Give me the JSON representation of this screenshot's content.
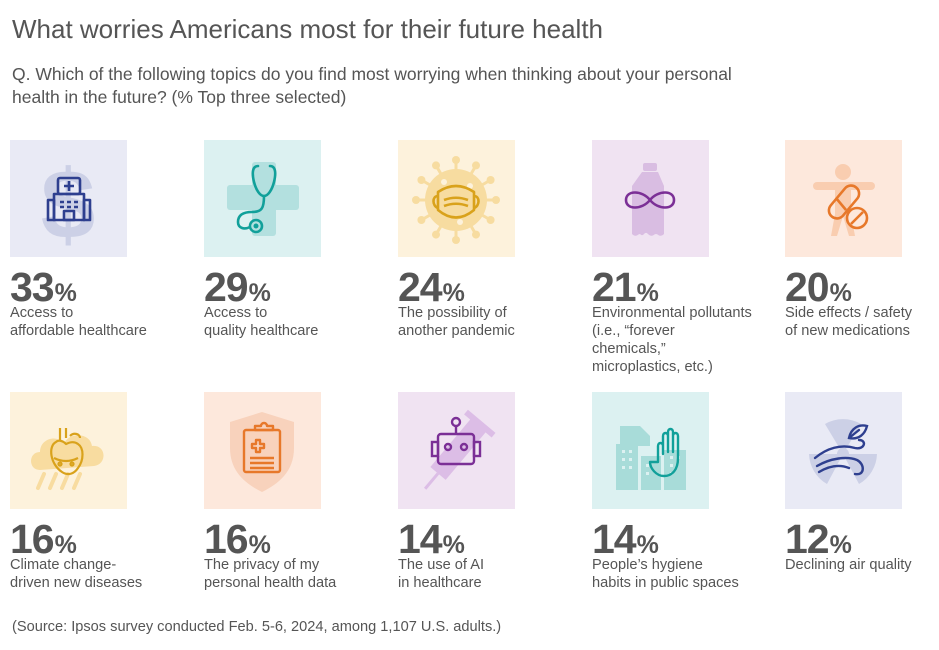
{
  "header": {
    "title": "What worries Americans most for their future health",
    "question": "Q. Which of the following topics do you find most worrying when thinking about your personal health in the future? (% Top three selected)"
  },
  "chart_data": {
    "type": "table",
    "title": "What worries Americans most for their future health",
    "subtitle": "Q. Which of the following topics do you find most worrying when thinking about your personal health in the future? (% Top three selected)",
    "unit": "%",
    "items": [
      {
        "value": 33,
        "label": "Access to\naffordable healthcare",
        "icon": "hospital-dollar-icon",
        "color": "#2e3f8f",
        "tile_color": "#e9eaf5"
      },
      {
        "value": 29,
        "label": "Access to\nquality healthcare",
        "icon": "stethoscope-icon",
        "color": "#11a09a",
        "tile_color": "#dcf1f1"
      },
      {
        "value": 24,
        "label": "The possibility of\nanother pandemic",
        "icon": "virus-mask-icon",
        "color": "#d9a21b",
        "tile_color": "#fdf2dc"
      },
      {
        "value": 21,
        "label": "Environmental pollutants\n(i.e., “forever chemicals,”\nmicroplastics, etc.)",
        "icon": "bottle-infinity-icon",
        "color": "#7b2f96",
        "tile_color": "#f0e3f2"
      },
      {
        "value": 20,
        "label": "Side effects / safety\nof new medications",
        "icon": "pill-prohibited-icon",
        "color": "#e7782a",
        "tile_color": "#fde8dc"
      },
      {
        "value": 16,
        "label": "Climate change-\ndriven new diseases",
        "icon": "heart-cloud-icon",
        "color": "#d9a21b",
        "tile_color": "#fdf2dc"
      },
      {
        "value": 16,
        "label": "The privacy of my\npersonal health data",
        "icon": "clipboard-shield-icon",
        "color": "#e7782a",
        "tile_color": "#fde8dc"
      },
      {
        "value": 14,
        "label": "The use of AI\nin healthcare",
        "icon": "robot-syringe-icon",
        "color": "#7b2f96",
        "tile_color": "#f0e3f2"
      },
      {
        "value": 14,
        "label": "People’s hygiene\nhabits in public spaces",
        "icon": "hand-buildings-icon",
        "color": "#11a09a",
        "tile_color": "#dcf1f1"
      },
      {
        "value": 12,
        "label": "Declining air quality",
        "icon": "wind-leaf-icon",
        "color": "#2e3f8f",
        "tile_color": "#e9eaf5"
      }
    ],
    "percent_sign": "%"
  },
  "footer": {
    "source": "(Source: Ipsos survey conducted Feb. 5-6, 2024, among 1,107 U.S. adults.)"
  }
}
